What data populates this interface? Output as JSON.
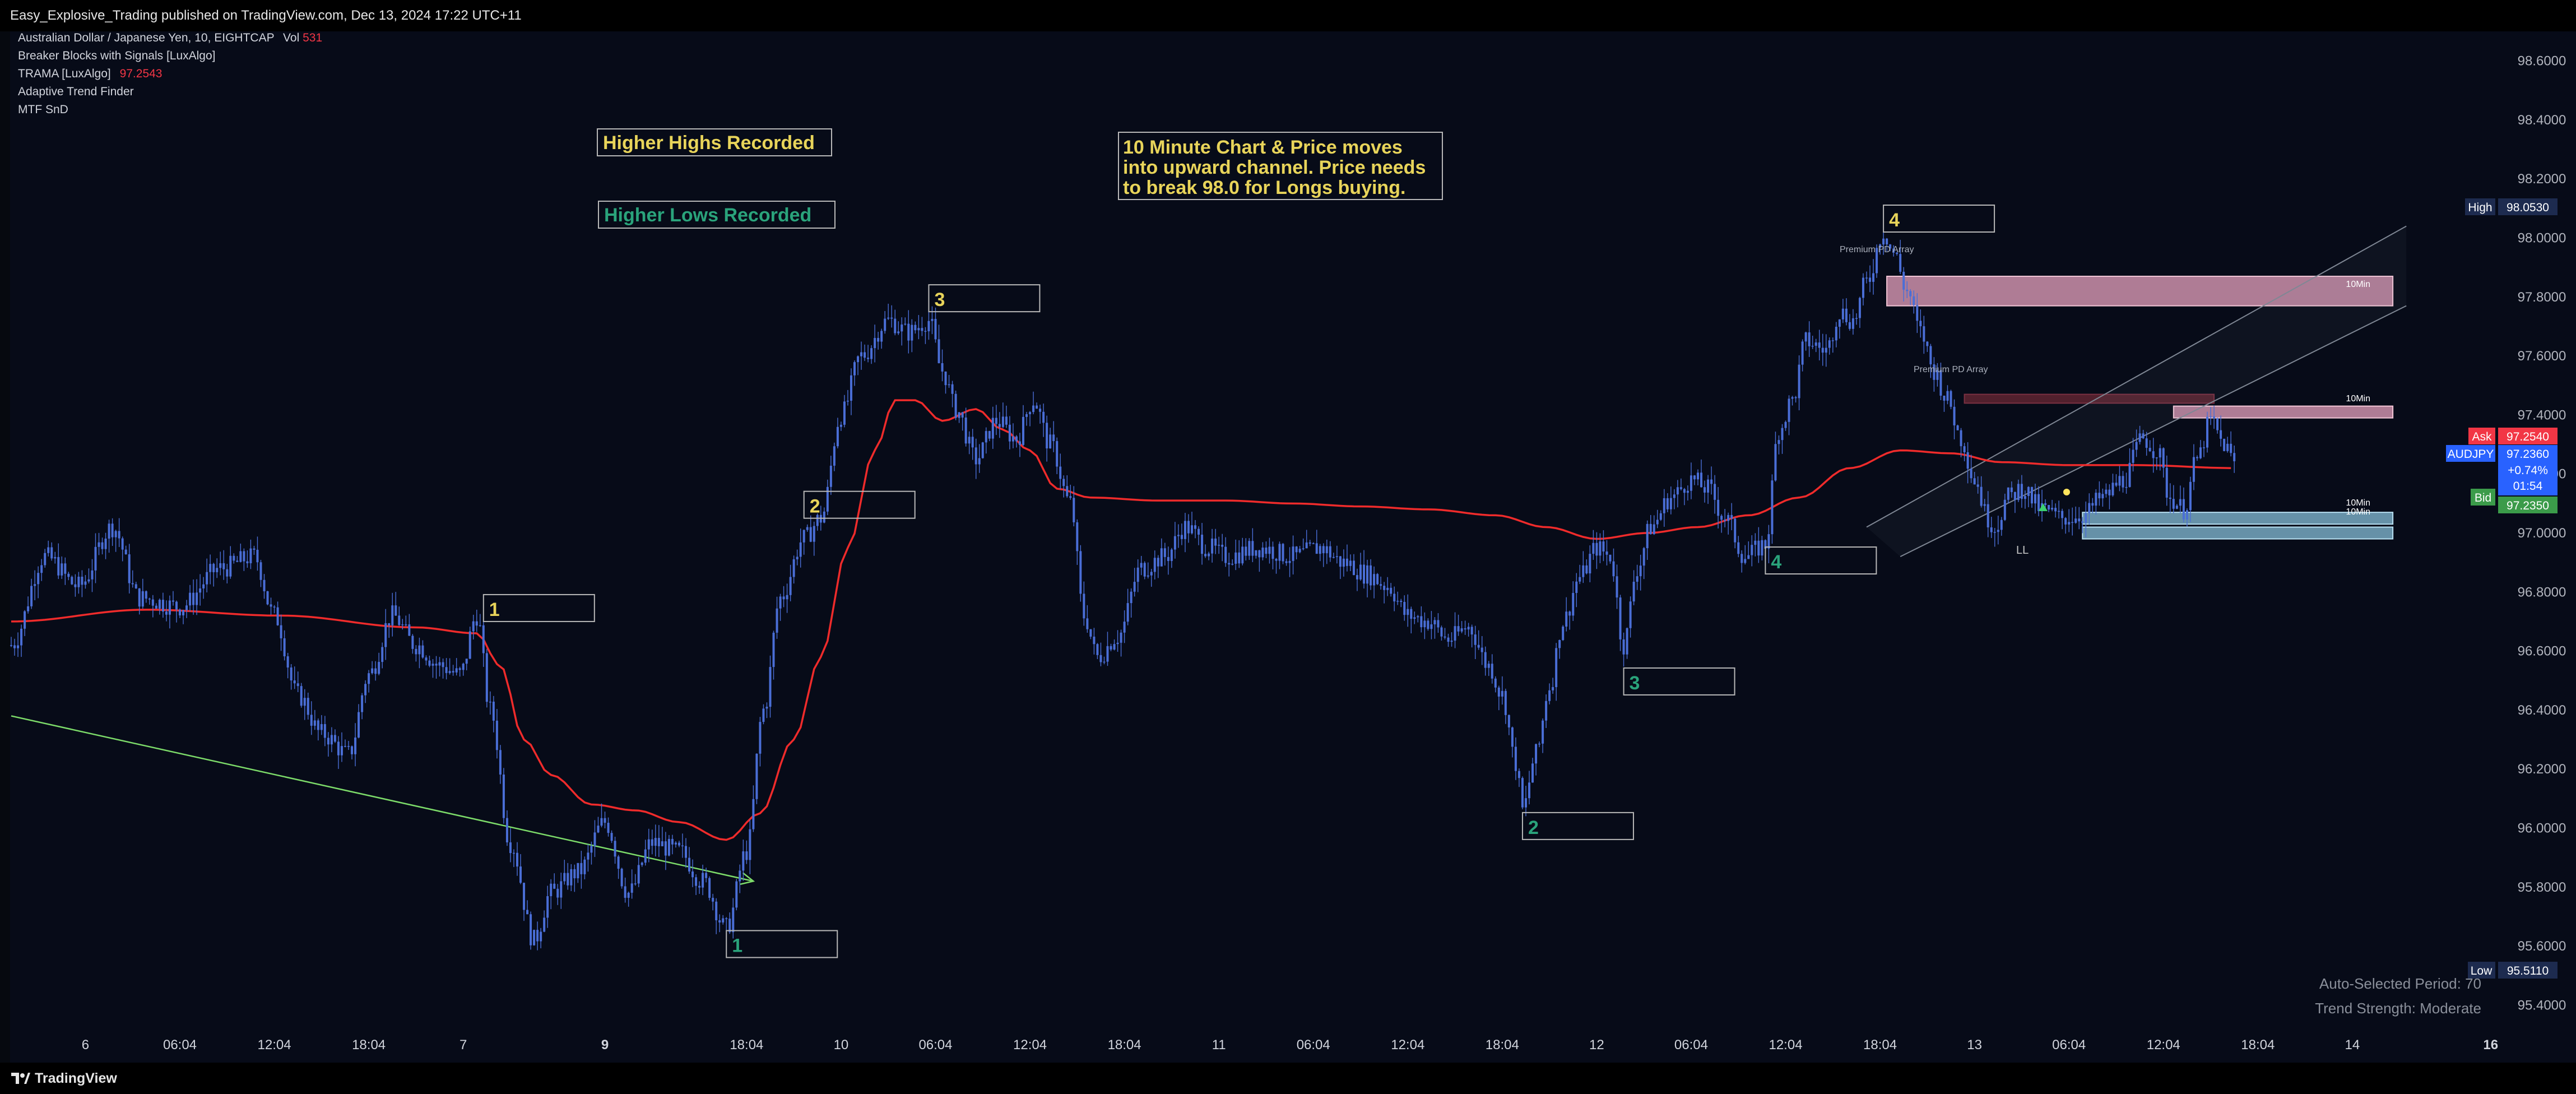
{
  "header": {
    "publish_line": "Easy_Explosive_Trading published on TradingView.com, Dec 13, 2024 17:22 UTC+11"
  },
  "footer": {
    "brand": "TradingView"
  },
  "legend": {
    "symbol_line": "Australian Dollar / Japanese Yen, 10, EIGHTCAP",
    "vol_label": "Vol",
    "vol_value": "531",
    "indicators": [
      {
        "name": "Breaker Blocks with Signals [LuxAlgo]",
        "value": ""
      },
      {
        "name": "TRAMA [LuxAlgo]",
        "value": "97.2543"
      },
      {
        "name": "Adaptive Trend Finder",
        "value": ""
      },
      {
        "name": "MTF SnD",
        "value": ""
      }
    ]
  },
  "colors": {
    "background": "#070b18",
    "candle": "#4a6ed6",
    "trama": "#ef2b2b",
    "trendline": "#7ddc6a",
    "channel": "#7f8794",
    "label_yellow": "#e8d45a",
    "label_green": "#2aa37b",
    "premium_zone": "#e8a3bf",
    "premium_zone_dark": "#5a2230",
    "demand_zone": "#8ecae6",
    "ask": "#f23645",
    "bid": "#3b9b4a",
    "symbol_tag": "#2962ff",
    "hilo_tag": "#1d2b4f"
  },
  "annotations": {
    "higher_highs": "Higher Highs Recorded",
    "higher_lows": "Higher Lows Recorded",
    "note_lines": [
      "10 Minute Chart & Price moves",
      "into upward channel. Price needs",
      "to break 98.0 for Longs buying."
    ],
    "premium_pd_1": "Premium PD Array",
    "premium_pd_2": "Premium PD Array",
    "tf_label": "10Min",
    "ll_label": "LL",
    "auto_period": "Auto-Selected Period: 70",
    "trend_strength": "Trend Strength: Moderate"
  },
  "swing_labels": {
    "highs": [
      {
        "label": "1",
        "i": 140,
        "y": 96.7
      },
      {
        "label": "2",
        "i": 235,
        "y": 97.05
      },
      {
        "label": "3",
        "i": 272,
        "y": 97.75
      },
      {
        "label": "4",
        "i": 555,
        "y": 98.02
      }
    ],
    "lows": [
      {
        "label": "1",
        "i": 212,
        "y": 95.66
      },
      {
        "label": "2",
        "i": 448,
        "y": 96.06
      },
      {
        "label": "3",
        "i": 478,
        "y": 96.55
      },
      {
        "label": "4",
        "i": 520,
        "y": 96.96
      }
    ]
  },
  "price_tags": {
    "high_label": "High",
    "high_value": "98.0530",
    "ask_label": "Ask",
    "ask_value": "97.2540",
    "symbol": "AUDJPY",
    "last_value": "97.2360",
    "change": "+0.74%",
    "countdown": "01:54",
    "bid_label": "Bid",
    "bid_value": "97.2350",
    "low_label": "Low",
    "low_value": "95.5110"
  },
  "chart_data": {
    "type": "candlestick",
    "symbol": "AUDJPY",
    "timeframe": "10",
    "ylim": [
      95.3,
      98.7
    ],
    "y_ticks": [
      95.4,
      95.6,
      95.8,
      96.0,
      96.2,
      96.4,
      96.6,
      96.8,
      97.0,
      97.2,
      97.4,
      97.6,
      97.8,
      98.0,
      98.2,
      98.4,
      98.6
    ],
    "y_tick_labels": [
      "95.4000",
      "95.6000",
      "95.8000",
      "96.0000",
      "96.2000",
      "96.4000",
      "96.6000",
      "96.8000",
      "97.0000",
      "97.2000",
      "97.4000",
      "97.6000",
      "97.8000",
      "98.0000",
      "98.2000",
      "98.4000",
      "98.6000"
    ],
    "x_ticks": [
      {
        "label": "6",
        "i": 22,
        "bold": false
      },
      {
        "label": "06:04",
        "i": 50,
        "bold": false
      },
      {
        "label": "12:04",
        "i": 78,
        "bold": false
      },
      {
        "label": "18:04",
        "i": 106,
        "bold": false
      },
      {
        "label": "7",
        "i": 134,
        "bold": false
      },
      {
        "label": "9",
        "i": 176,
        "bold": true
      },
      {
        "label": "18:04",
        "i": 218,
        "bold": false
      },
      {
        "label": "10",
        "i": 246,
        "bold": false
      },
      {
        "label": "06:04",
        "i": 274,
        "bold": false
      },
      {
        "label": "12:04",
        "i": 302,
        "bold": false
      },
      {
        "label": "18:04",
        "i": 330,
        "bold": false
      },
      {
        "label": "11",
        "i": 358,
        "bold": false
      },
      {
        "label": "06:04",
        "i": 386,
        "bold": false
      },
      {
        "label": "12:04",
        "i": 414,
        "bold": false
      },
      {
        "label": "18:04",
        "i": 442,
        "bold": false
      },
      {
        "label": "12",
        "i": 470,
        "bold": false
      },
      {
        "label": "06:04",
        "i": 498,
        "bold": false
      },
      {
        "label": "12:04",
        "i": 526,
        "bold": false
      },
      {
        "label": "18:04",
        "i": 554,
        "bold": false
      },
      {
        "label": "13",
        "i": 582,
        "bold": false
      },
      {
        "label": "06:04",
        "i": 610,
        "bold": false
      },
      {
        "label": "12:04",
        "i": 638,
        "bold": false
      },
      {
        "label": "18:04",
        "i": 666,
        "bold": false
      },
      {
        "label": "14",
        "i": 694,
        "bold": false
      },
      {
        "label": "16",
        "i": 735,
        "bold": true
      }
    ],
    "candle_count": 660,
    "price_keypoints": [
      [
        0,
        96.62
      ],
      [
        10,
        96.92
      ],
      [
        20,
        96.82
      ],
      [
        30,
        97.02
      ],
      [
        38,
        96.78
      ],
      [
        50,
        96.75
      ],
      [
        62,
        96.88
      ],
      [
        72,
        96.92
      ],
      [
        78,
        96.72
      ],
      [
        85,
        96.45
      ],
      [
        92,
        96.32
      ],
      [
        100,
        96.25
      ],
      [
        106,
        96.52
      ],
      [
        113,
        96.72
      ],
      [
        120,
        96.62
      ],
      [
        127,
        96.55
      ],
      [
        133,
        96.52
      ],
      [
        138,
        96.72
      ],
      [
        142,
        96.4
      ],
      [
        148,
        95.95
      ],
      [
        155,
        95.62
      ],
      [
        160,
        95.78
      ],
      [
        168,
        95.85
      ],
      [
        176,
        96.02
      ],
      [
        183,
        95.78
      ],
      [
        190,
        95.95
      ],
      [
        198,
        95.92
      ],
      [
        205,
        95.82
      ],
      [
        212,
        95.66
      ],
      [
        218,
        95.92
      ],
      [
        223,
        96.4
      ],
      [
        228,
        96.78
      ],
      [
        235,
        96.98
      ],
      [
        240,
        97.05
      ],
      [
        246,
        97.4
      ],
      [
        252,
        97.6
      ],
      [
        260,
        97.72
      ],
      [
        266,
        97.68
      ],
      [
        272,
        97.72
      ],
      [
        276,
        97.55
      ],
      [
        280,
        97.42
      ],
      [
        286,
        97.25
      ],
      [
        292,
        97.38
      ],
      [
        298,
        97.32
      ],
      [
        303,
        97.45
      ],
      [
        308,
        97.3
      ],
      [
        314,
        97.1
      ],
      [
        318,
        96.72
      ],
      [
        322,
        96.58
      ],
      [
        328,
        96.65
      ],
      [
        335,
        96.88
      ],
      [
        342,
        96.92
      ],
      [
        348,
        97.02
      ],
      [
        355,
        96.95
      ],
      [
        360,
        96.92
      ],
      [
        370,
        96.95
      ],
      [
        380,
        96.92
      ],
      [
        388,
        96.95
      ],
      [
        395,
        96.9
      ],
      [
        402,
        96.86
      ],
      [
        408,
        96.82
      ],
      [
        414,
        96.72
      ],
      [
        420,
        96.7
      ],
      [
        426,
        96.64
      ],
      [
        432,
        96.68
      ],
      [
        438,
        96.55
      ],
      [
        442,
        96.45
      ],
      [
        446,
        96.22
      ],
      [
        448,
        96.06
      ],
      [
        452,
        96.25
      ],
      [
        456,
        96.48
      ],
      [
        460,
        96.7
      ],
      [
        465,
        96.85
      ],
      [
        470,
        96.95
      ],
      [
        474,
        96.92
      ],
      [
        478,
        96.62
      ],
      [
        482,
        96.88
      ],
      [
        486,
        97.02
      ],
      [
        492,
        97.12
      ],
      [
        498,
        97.18
      ],
      [
        503,
        97.15
      ],
      [
        508,
        97.05
      ],
      [
        514,
        96.92
      ],
      [
        520,
        96.96
      ],
      [
        524,
        97.35
      ],
      [
        528,
        97.45
      ],
      [
        532,
        97.65
      ],
      [
        538,
        97.62
      ],
      [
        542,
        97.75
      ],
      [
        546,
        97.72
      ],
      [
        550,
        97.85
      ],
      [
        555,
        98.02
      ],
      [
        558,
        97.95
      ],
      [
        562,
        97.82
      ],
      [
        566,
        97.68
      ],
      [
        570,
        97.55
      ],
      [
        574,
        97.45
      ],
      [
        578,
        97.32
      ],
      [
        582,
        97.18
      ],
      [
        586,
        97.05
      ],
      [
        588,
        97.02
      ],
      [
        592,
        97.12
      ],
      [
        596,
        97.15
      ],
      [
        602,
        97.08
      ],
      [
        608,
        97.05
      ],
      [
        614,
        97.06
      ],
      [
        620,
        97.12
      ],
      [
        626,
        97.18
      ],
      [
        632,
        97.32
      ],
      [
        636,
        97.28
      ],
      [
        640,
        97.12
      ],
      [
        644,
        97.08
      ],
      [
        648,
        97.25
      ],
      [
        652,
        97.38
      ],
      [
        656,
        97.3
      ],
      [
        659,
        97.24
      ]
    ],
    "trama_keypoints": [
      [
        0,
        96.7
      ],
      [
        40,
        96.74
      ],
      [
        80,
        96.72
      ],
      [
        120,
        96.68
      ],
      [
        138,
        96.66
      ],
      [
        145,
        96.55
      ],
      [
        152,
        96.3
      ],
      [
        160,
        96.18
      ],
      [
        172,
        96.08
      ],
      [
        185,
        96.06
      ],
      [
        198,
        96.02
      ],
      [
        212,
        95.96
      ],
      [
        222,
        96.05
      ],
      [
        232,
        96.3
      ],
      [
        240,
        96.58
      ],
      [
        248,
        96.95
      ],
      [
        256,
        97.28
      ],
      [
        262,
        97.45
      ],
      [
        268,
        97.45
      ],
      [
        276,
        97.38
      ],
      [
        286,
        97.42
      ],
      [
        294,
        97.35
      ],
      [
        302,
        97.28
      ],
      [
        310,
        97.15
      ],
      [
        320,
        97.12
      ],
      [
        340,
        97.11
      ],
      [
        360,
        97.11
      ],
      [
        380,
        97.1
      ],
      [
        400,
        97.09
      ],
      [
        420,
        97.08
      ],
      [
        440,
        97.06
      ],
      [
        455,
        97.02
      ],
      [
        470,
        96.98
      ],
      [
        485,
        97.0
      ],
      [
        500,
        97.02
      ],
      [
        515,
        97.06
      ],
      [
        530,
        97.12
      ],
      [
        545,
        97.22
      ],
      [
        560,
        97.28
      ],
      [
        575,
        97.27
      ],
      [
        590,
        97.24
      ],
      [
        610,
        97.23
      ],
      [
        630,
        97.23
      ],
      [
        659,
        97.22
      ]
    ],
    "trendline": {
      "from": [
        0,
        96.38
      ],
      "to": [
        220,
        95.82
      ]
    },
    "channel": {
      "upper": [
        [
          550,
          97.02
        ],
        [
          710,
          98.04
        ]
      ],
      "lower": [
        [
          560,
          96.92
        ],
        [
          710,
          97.77
        ]
      ]
    },
    "zones": {
      "premium_1": {
        "x0": 556,
        "x1": 706,
        "y0": 97.77,
        "y1": 97.87
      },
      "premium_2_dark": {
        "x0": 579,
        "x1": 653,
        "y0": 97.44,
        "y1": 97.47
      },
      "premium_2": {
        "x0": 641,
        "x1": 706,
        "y0": 97.39,
        "y1": 97.43
      },
      "demand_1": {
        "x0": 614,
        "x1": 706,
        "y0": 97.03,
        "y1": 97.07
      },
      "demand_2": {
        "x0": 614,
        "x1": 706,
        "y0": 96.98,
        "y1": 97.02
      }
    }
  }
}
